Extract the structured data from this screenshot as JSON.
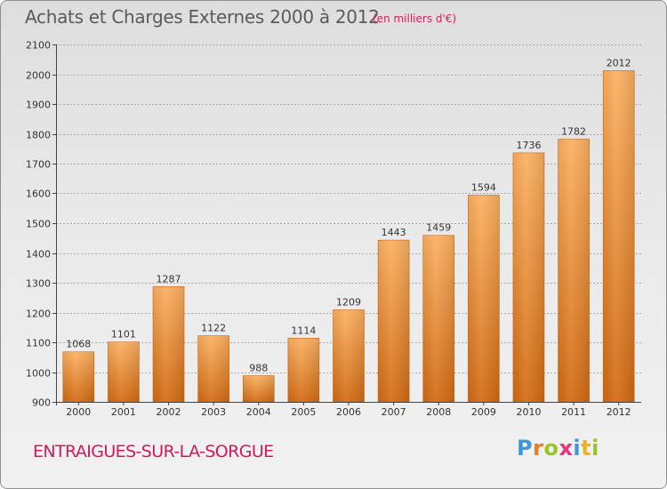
{
  "header": {
    "title": "Achats et Charges Externes 2000 à 2012",
    "subtitle": "(en milliers d'€)"
  },
  "footer": {
    "commune": "ENTRAIGUES-SUR-LA-SORGUE",
    "logo_text": "Proxiti",
    "logo_colors": [
      "#3a9ad9",
      "#f07a1a",
      "#9bc521",
      "#e8347a",
      "#3a9ad9",
      "#f0b11a",
      "#9bc521"
    ]
  },
  "colors": {
    "bar_light": "#fcb060",
    "bar_dark": "#d26a12",
    "grid": "#a9a9a9",
    "axis": "#444444"
  },
  "chart_data": {
    "type": "bar",
    "title": "Achats et Charges Externes 2000 à 2012",
    "subtitle": "(en milliers d'€)",
    "categories": [
      "2000",
      "2001",
      "2002",
      "2003",
      "2004",
      "2005",
      "2006",
      "2007",
      "2008",
      "2009",
      "2010",
      "2011",
      "2012"
    ],
    "values": [
      1068,
      1101,
      1287,
      1122,
      988,
      1114,
      1209,
      1443,
      1459,
      1594,
      1736,
      1782,
      2012
    ],
    "ylim": [
      900,
      2100
    ],
    "yticks": [
      900,
      1000,
      1100,
      1200,
      1300,
      1400,
      1500,
      1600,
      1700,
      1800,
      1900,
      2000,
      2100
    ],
    "grid": true,
    "xlabel": "",
    "ylabel": ""
  }
}
